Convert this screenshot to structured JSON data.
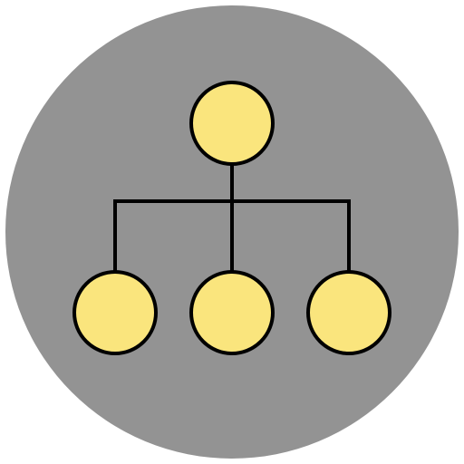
{
  "icon": {
    "name": "hierarchy-org-chart-icon",
    "colors": {
      "background_circle": "#939393",
      "node_fill": "#FAE57D",
      "stroke": "#000000"
    },
    "structure": {
      "root": "root",
      "children": [
        "child-left",
        "child-middle",
        "child-right"
      ]
    }
  }
}
